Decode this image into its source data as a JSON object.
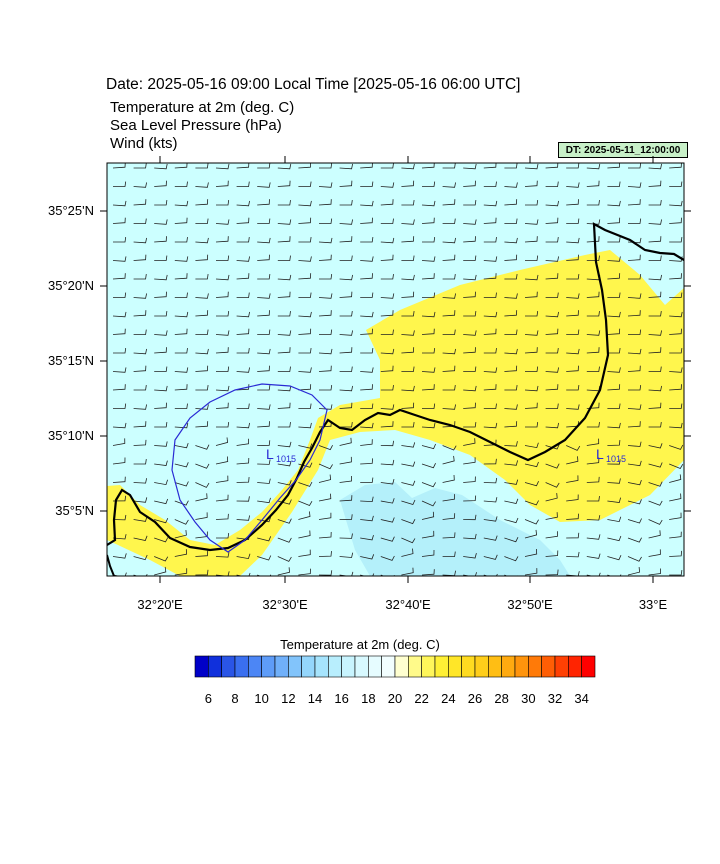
{
  "header": {
    "date_title": "Date: 2025-05-16  09:00 Local Time [2025-05-16  06:00 UTC]",
    "variables": [
      "Temperature at 2m   (deg. C)",
      "Sea Level Pressure   (hPa)",
      "Wind   (kts)"
    ],
    "dt_badge": "DT: 2025-05-11_12:00:00"
  },
  "map": {
    "lat_labels": [
      "35°25'N",
      "35°20'N",
      "35°15'N",
      "35°10'N",
      "35°5'N"
    ],
    "lon_labels": [
      "32°20'E",
      "32°30'E",
      "32°40'E",
      "32°50'E",
      "33°E"
    ],
    "pressure_lows": [
      {
        "letter": "L",
        "value": "1015"
      },
      {
        "letter": "L",
        "value": "1015"
      }
    ],
    "colors": {
      "sea_cool": "#ccffff",
      "sea_cooler": "#b4f0fa",
      "land_warm": "#fff64d",
      "coast": "#000000",
      "isobar": "#2a2ad4"
    }
  },
  "colorbar": {
    "title": "Temperature at 2m  (deg. C)",
    "tick_labels": [
      "6",
      "8",
      "10",
      "12",
      "14",
      "16",
      "18",
      "20",
      "22",
      "24",
      "26",
      "28",
      "30",
      "32",
      "34"
    ],
    "colors": [
      "#0000c8",
      "#1030dc",
      "#2a55e6",
      "#3a6ff0",
      "#4c86f5",
      "#5e9cf8",
      "#70b0fa",
      "#82c4fb",
      "#94d6fc",
      "#a6e4fd",
      "#b8eefd",
      "#c8f4fe",
      "#d8f9ff",
      "#e6fcff",
      "#f2feff",
      "#ffffd0",
      "#fffa8a",
      "#fff65a",
      "#fff035",
      "#ffe628",
      "#ffdb20",
      "#ffce1a",
      "#ffbe14",
      "#ffaa10",
      "#ff940c",
      "#ff7a08",
      "#ff5e05",
      "#ff4003",
      "#ff2401",
      "#ff0000"
    ]
  }
}
